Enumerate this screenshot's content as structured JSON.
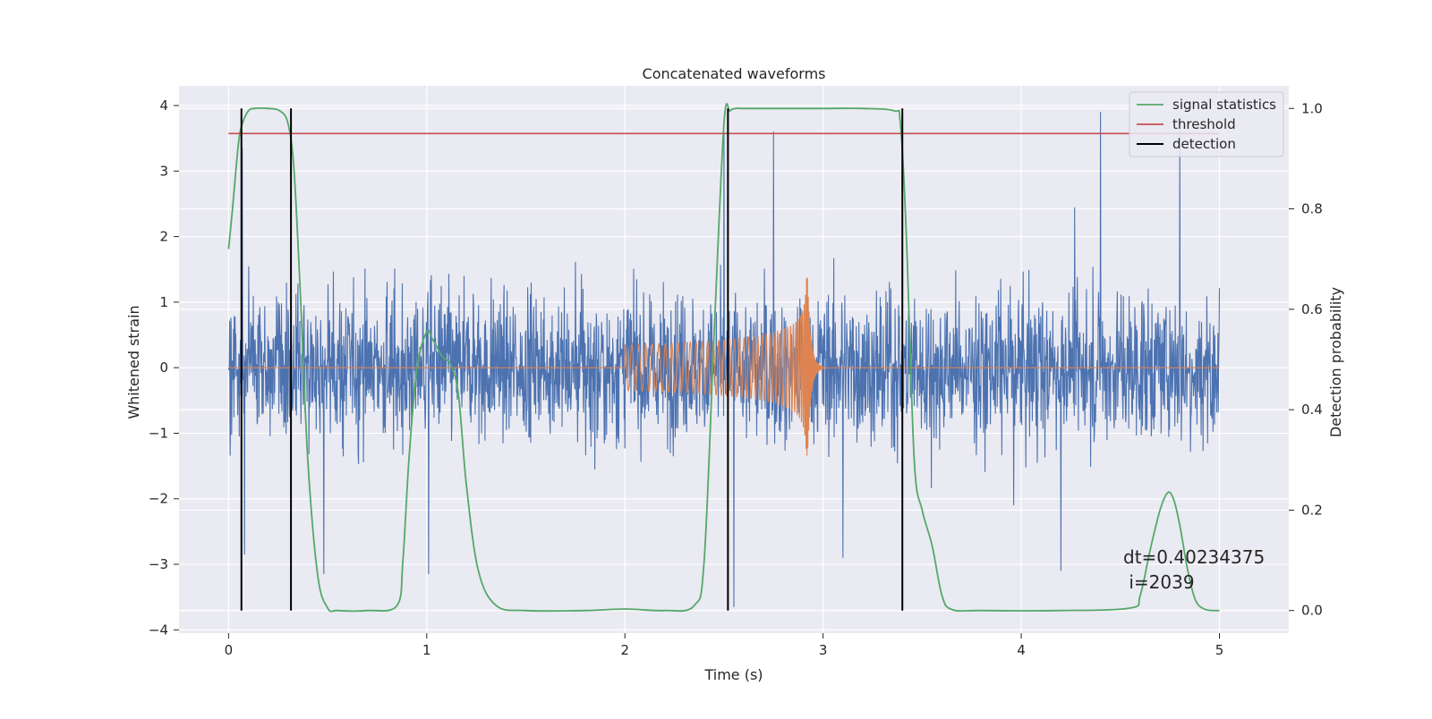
{
  "chart_data": {
    "type": "line",
    "title": "Concatenated waveforms",
    "xlabel": "Time (s)",
    "ylabel": "Whitened strain",
    "y2label": "Detection probability",
    "xlim": [
      -0.25,
      5.35
    ],
    "ylim": [
      -4.05,
      4.3
    ],
    "y2lim": [
      -0.045,
      1.045
    ],
    "xticks": [
      0,
      1,
      2,
      3,
      4,
      5
    ],
    "yticks": [
      -4,
      -3,
      -2,
      -1,
      0,
      1,
      2,
      3,
      4
    ],
    "y2ticks": [
      0.0,
      0.2,
      0.4,
      0.6,
      0.8,
      1.0
    ],
    "xtick_labels": [
      "0",
      "1",
      "2",
      "3",
      "4",
      "5"
    ],
    "ytick_labels": [
      "−4",
      "−3",
      "−2",
      "−1",
      "0",
      "1",
      "2",
      "3",
      "4"
    ],
    "y2tick_labels": [
      "0.0",
      "0.2",
      "0.4",
      "0.6",
      "0.8",
      "1.0"
    ],
    "grid": true,
    "legend_position": "top-right",
    "colors": {
      "noise": "#4c72b0",
      "signal": "#dd8452",
      "statistics": "#55a868",
      "threshold": "#c44e52",
      "detection": "#000000",
      "background": "#eaeaf2"
    },
    "series": [
      {
        "name": "signal statistics",
        "axis": "right",
        "x": [
          0.0,
          0.02,
          0.05,
          0.07,
          0.1,
          0.13,
          0.2,
          0.26,
          0.3,
          0.33,
          0.36,
          0.4,
          0.45,
          0.5,
          0.55,
          0.7,
          0.85,
          0.88,
          0.91,
          0.95,
          1.0,
          1.03,
          1.08,
          1.12,
          1.16,
          1.2,
          1.26,
          1.35,
          1.5,
          1.8,
          2.0,
          2.2,
          2.35,
          2.4,
          2.45,
          2.5,
          2.53,
          2.56,
          2.6,
          2.8,
          3.0,
          3.2,
          3.36,
          3.39,
          3.42,
          3.46,
          3.5,
          3.55,
          3.6,
          3.65,
          3.8,
          4.2,
          4.55,
          4.6,
          4.65,
          4.7,
          4.74,
          4.77,
          4.8,
          4.84,
          4.88,
          4.93,
          5.0
        ],
        "y": [
          0.72,
          0.8,
          0.93,
          0.97,
          0.995,
          1.0,
          1.0,
          0.995,
          0.97,
          0.88,
          0.65,
          0.3,
          0.07,
          0.005,
          0.0,
          0.0,
          0.01,
          0.1,
          0.3,
          0.48,
          0.555,
          0.54,
          0.505,
          0.49,
          0.43,
          0.25,
          0.08,
          0.01,
          0.0,
          0.0,
          0.003,
          0.0,
          0.01,
          0.1,
          0.55,
          0.97,
          0.995,
          1.0,
          1.0,
          1.0,
          1.0,
          1.0,
          0.995,
          0.97,
          0.75,
          0.3,
          0.2,
          0.13,
          0.03,
          0.002,
          0.0,
          0.0,
          0.005,
          0.03,
          0.12,
          0.2,
          0.235,
          0.22,
          0.17,
          0.08,
          0.02,
          0.002,
          0.0
        ]
      },
      {
        "name": "threshold",
        "axis": "right",
        "x": [
          0.0,
          5.0
        ],
        "y": [
          0.95,
          0.95
        ]
      },
      {
        "name": "detection",
        "axis": "right",
        "x": [
          0.065,
          0.315,
          2.52,
          3.4
        ],
        "y_range": [
          0.0,
          1.0
        ]
      },
      {
        "name": "",
        "axis": "left",
        "description_free": true,
        "x_range": [
          0.0,
          5.0
        ],
        "envelope_typical": 1.4,
        "envelope_max": 3.9,
        "spikes": [
          {
            "x": 0.07,
            "y": 3.35
          },
          {
            "x": 2.5,
            "y": 3.6
          },
          {
            "x": 2.75,
            "y": 3.6
          },
          {
            "x": 4.4,
            "y": 3.9
          },
          {
            "x": 4.8,
            "y": 3.6
          },
          {
            "x": 0.08,
            "y": -2.85
          },
          {
            "x": 0.48,
            "y": -3.15
          },
          {
            "x": 1.01,
            "y": -3.15
          },
          {
            "x": 2.55,
            "y": -3.65
          },
          {
            "x": 3.1,
            "y": -2.9
          },
          {
            "x": 4.2,
            "y": -3.1
          }
        ]
      },
      {
        "name": "",
        "axis": "left",
        "chirp": true,
        "x_start": 2.0,
        "x_peak": 2.92,
        "x_end": 3.0,
        "amp_start": 0.35,
        "amp_peak": 1.65
      }
    ]
  },
  "annotation": {
    "line1": "dt=0.40234375",
    "line2": " i=2039"
  }
}
